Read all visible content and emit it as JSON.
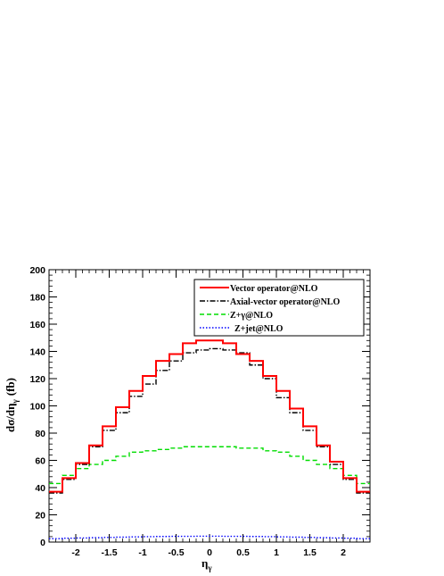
{
  "chart_data": {
    "type": "line",
    "xlabel": "η",
    "xlabel_sub": "γ",
    "ylabel": "dσ/dη",
    "ylabel_sub": "γ",
    "ylabel_unit": "(fb)",
    "xlim": [
      -2.4,
      2.4
    ],
    "ylim": [
      0,
      200
    ],
    "x_ticks": [
      -2,
      -1.5,
      -1,
      -0.5,
      0,
      0.5,
      1,
      1.5,
      2
    ],
    "x_tick_labels": [
      "-2",
      "-1.5",
      "-1",
      "-0.5",
      "0",
      "0.5",
      "1",
      "1.5",
      "2"
    ],
    "y_ticks": [
      0,
      20,
      40,
      60,
      80,
      100,
      120,
      140,
      160,
      180,
      200
    ],
    "y_tick_labels": [
      "0",
      "20",
      "40",
      "60",
      "80",
      "100",
      "120",
      "140",
      "160",
      "180",
      "200"
    ],
    "grid": false,
    "legend_position": "top-right",
    "bin_edges": [
      -2.4,
      -2.2,
      -2.0,
      -1.8,
      -1.6,
      -1.4,
      -1.2,
      -1.0,
      -0.8,
      -0.6,
      -0.4,
      -0.2,
      0.0,
      0.2,
      0.4,
      0.6,
      0.8,
      1.0,
      1.2,
      1.4,
      1.6,
      1.8,
      2.0,
      2.2,
      2.4
    ],
    "series": [
      {
        "name": "Vector operator@NLO",
        "color": "#ff0000",
        "style": "solid",
        "values": [
          37,
          47,
          58,
          71,
          85,
          99,
          111,
          122,
          133,
          138,
          146,
          148,
          148,
          146,
          138,
          133,
          122,
          111,
          98,
          85,
          71,
          59,
          47,
          37
        ]
      },
      {
        "name": "Axial-vector operator@NLO",
        "color": "#000000",
        "style": "dashdot",
        "values": [
          36,
          46,
          57,
          70,
          82,
          95,
          107,
          116,
          126,
          133,
          139,
          141,
          142,
          141,
          139,
          130,
          120,
          106,
          95,
          82,
          70,
          57,
          46,
          36
        ]
      },
      {
        "name": "Z+γ@NLO",
        "color": "#00dd00",
        "style": "dashed",
        "values": [
          43,
          49,
          54,
          57,
          60,
          63,
          66,
          67,
          68,
          69,
          70,
          70,
          70,
          70,
          69,
          69,
          67,
          66,
          63,
          60,
          57,
          54,
          49,
          43
        ]
      },
      {
        "name": "Z+jet@NLO",
        "color": "#0000ff",
        "style": "dotted",
        "values": [
          2.5,
          2.8,
          3.0,
          3.2,
          3.4,
          3.6,
          3.8,
          4.0,
          4.1,
          4.2,
          4.2,
          4.3,
          4.3,
          4.2,
          4.2,
          4.1,
          4.0,
          3.8,
          3.6,
          3.4,
          3.2,
          3.0,
          2.8,
          2.5
        ]
      }
    ]
  }
}
